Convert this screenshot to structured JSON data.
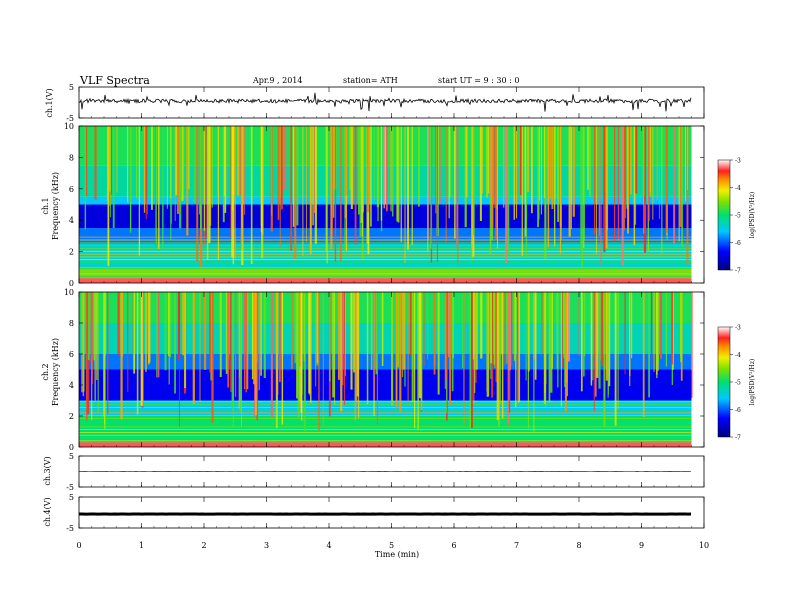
{
  "header": {
    "title": "VLF  Spectra",
    "date": "Apr.9  , 2014",
    "station": "station= ATH",
    "start": "start  UT  =   9 : 30 : 0"
  },
  "chart_data": [
    {
      "type": "line",
      "ylabel": "ch.1(V)",
      "ylim": [
        -5,
        5
      ],
      "yticks": [
        "5",
        "-5"
      ],
      "trace": "noisy waveform around 0.5 V with spikes reaching about ±3 V"
    },
    {
      "type": "heatmap",
      "ylabel_channel": "ch.1",
      "ylabel": "Frequency  (kHz)",
      "ylim": [
        0,
        10
      ],
      "yticks": [
        "0",
        "2",
        "4",
        "6",
        "8",
        "10"
      ],
      "colorbar": {
        "label": "log(PSD(V²/Hz)",
        "range": [
          -7,
          -3
        ],
        "ticks": [
          "-3",
          "-4",
          "-5",
          "-6",
          "-7"
        ]
      },
      "bands": [
        {
          "from_khz": 0.0,
          "to_khz": 0.3,
          "log_psd": -3.5
        },
        {
          "from_khz": 0.3,
          "to_khz": 1.0,
          "log_psd": -4.6
        },
        {
          "from_khz": 1.0,
          "to_khz": 2.5,
          "log_psd": -5.4
        },
        {
          "from_khz": 2.5,
          "to_khz": 3.5,
          "log_psd": -5.9
        },
        {
          "from_khz": 3.5,
          "to_khz": 5.0,
          "log_psd": -6.5
        },
        {
          "from_khz": 5.0,
          "to_khz": 5.5,
          "log_psd": -5.6
        },
        {
          "from_khz": 5.5,
          "to_khz": 7.5,
          "log_psd": -5.2
        },
        {
          "from_khz": 7.5,
          "to_khz": 10.0,
          "log_psd": -4.9
        }
      ]
    },
    {
      "type": "heatmap",
      "ylabel_channel": "ch.2",
      "ylabel": "Frequency  (kHz)",
      "ylim": [
        0,
        10
      ],
      "yticks": [
        "0",
        "2",
        "4",
        "6",
        "8",
        "10"
      ],
      "colorbar": {
        "label": "log(PSD(V²/Hz)",
        "range": [
          -7,
          -3
        ],
        "ticks": [
          "-3",
          "-4",
          "-5",
          "-6",
          "-7"
        ]
      },
      "bands": [
        {
          "from_khz": 0.0,
          "to_khz": 0.3,
          "log_psd": -3.7
        },
        {
          "from_khz": 0.3,
          "to_khz": 2.0,
          "log_psd": -5.0
        },
        {
          "from_khz": 2.0,
          "to_khz": 3.0,
          "log_psd": -5.6
        },
        {
          "from_khz": 3.0,
          "to_khz": 5.0,
          "log_psd": -6.4
        },
        {
          "from_khz": 5.0,
          "to_khz": 6.0,
          "log_psd": -5.9
        },
        {
          "from_khz": 6.0,
          "to_khz": 8.0,
          "log_psd": -5.3
        },
        {
          "from_khz": 8.0,
          "to_khz": 10.0,
          "log_psd": -4.9
        }
      ]
    },
    {
      "type": "line",
      "ylabel": "ch.3(V)",
      "ylim": [
        -5,
        5
      ],
      "yticks": [
        "5",
        "-5"
      ],
      "level": 0.0
    },
    {
      "type": "line",
      "ylabel": "ch.4(V)",
      "ylim": [
        -5,
        5
      ],
      "yticks": [
        "5",
        "-5"
      ],
      "level": -0.5
    }
  ],
  "xaxis": {
    "label": "Time  (min)",
    "xlim": [
      0,
      10
    ],
    "data_end": 9.8,
    "ticks": [
      "0",
      "1",
      "2",
      "3",
      "4",
      "5",
      "6",
      "7",
      "8",
      "9",
      "10"
    ]
  }
}
